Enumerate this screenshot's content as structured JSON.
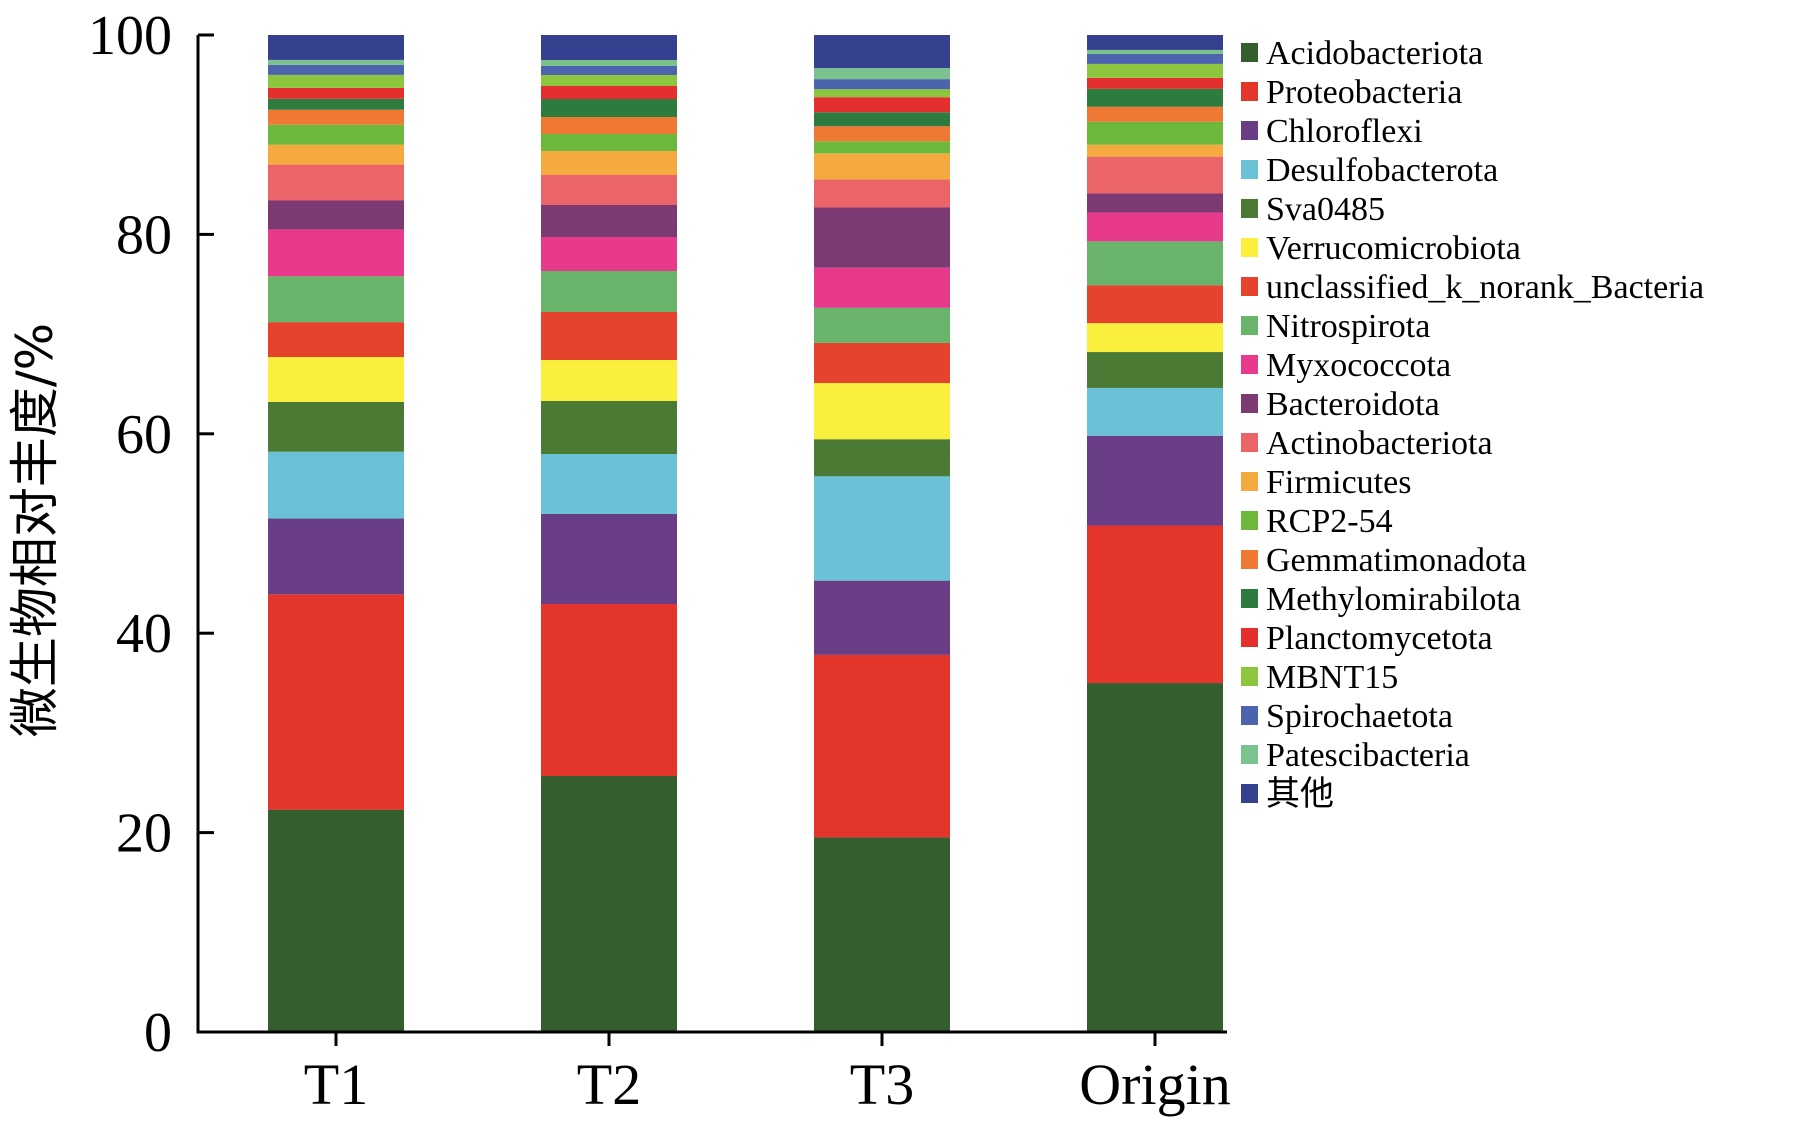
{
  "chart_data": {
    "type": "bar",
    "stacked": true,
    "title": "",
    "xlabel": "",
    "ylabel": "微生物相对丰度/%",
    "ylim": [
      0,
      100
    ],
    "yticks": [
      0,
      20,
      40,
      60,
      80,
      100
    ],
    "categories": [
      "T1",
      "T2",
      "T3",
      "Origin"
    ],
    "legend_position": "right",
    "series": [
      {
        "name": "Acidobacteriota",
        "color": "#355e2e",
        "values": [
          22.3,
          25.6,
          19.4,
          35.0
        ]
      },
      {
        "name": "Proteobacteria",
        "color": "#e4352b",
        "values": [
          21.6,
          17.2,
          18.2,
          15.8
        ]
      },
      {
        "name": "Chloroflexi",
        "color": "#6a3d87",
        "values": [
          7.6,
          9.0,
          7.4,
          9.0
        ]
      },
      {
        "name": "Desulfobacterota",
        "color": "#6bc1d6",
        "values": [
          6.7,
          6.0,
          10.4,
          4.8
        ]
      },
      {
        "name": "Sva0485",
        "color": "#4a7a34",
        "values": [
          5.0,
          5.3,
          3.7,
          3.6
        ]
      },
      {
        "name": "Verrucomicrobiota",
        "color": "#f9ef3c",
        "values": [
          4.5,
          4.1,
          5.6,
          2.9
        ]
      },
      {
        "name": "unclassified_k_norank_Bacteria",
        "color": "#e5432d",
        "values": [
          3.5,
          4.8,
          4.0,
          3.8
        ]
      },
      {
        "name": "Nitrospirota",
        "color": "#6ab36a",
        "values": [
          4.6,
          4.1,
          3.5,
          4.4
        ]
      },
      {
        "name": "Myxococcota",
        "color": "#e83a8a",
        "values": [
          4.7,
          3.4,
          4.0,
          2.9
        ]
      },
      {
        "name": "Bacteroidota",
        "color": "#7c3a73",
        "values": [
          2.9,
          3.2,
          6.0,
          1.9
        ]
      },
      {
        "name": "Actinobacteriota",
        "color": "#ea6468",
        "values": [
          3.6,
          3.0,
          2.8,
          3.7
        ]
      },
      {
        "name": "Firmicutes",
        "color": "#f4aa3e",
        "values": [
          2.0,
          2.4,
          2.6,
          1.2
        ]
      },
      {
        "name": "RCP2-54",
        "color": "#6cb83c",
        "values": [
          2.0,
          1.7,
          1.2,
          2.3
        ]
      },
      {
        "name": "Gemmatimonadota",
        "color": "#ef7833",
        "values": [
          1.5,
          1.7,
          1.5,
          1.5
        ]
      },
      {
        "name": "Methylomirabilota",
        "color": "#2d7b3e",
        "values": [
          1.1,
          1.8,
          1.4,
          1.8
        ]
      },
      {
        "name": "Planctomycetota",
        "color": "#e3302f",
        "values": [
          1.1,
          1.3,
          1.5,
          1.1
        ]
      },
      {
        "name": "MBNT15",
        "color": "#8cc63f",
        "values": [
          1.3,
          1.1,
          0.8,
          1.4
        ]
      },
      {
        "name": "Spirochaetota",
        "color": "#4b64ad",
        "values": [
          1.0,
          0.9,
          1.0,
          1.0
        ]
      },
      {
        "name": "Patescibacteria",
        "color": "#7bc28e",
        "values": [
          0.5,
          0.6,
          1.1,
          0.4
        ]
      },
      {
        "name": "其他",
        "color": "#35408e",
        "values": [
          2.5,
          2.5,
          3.3,
          1.5
        ]
      }
    ]
  }
}
